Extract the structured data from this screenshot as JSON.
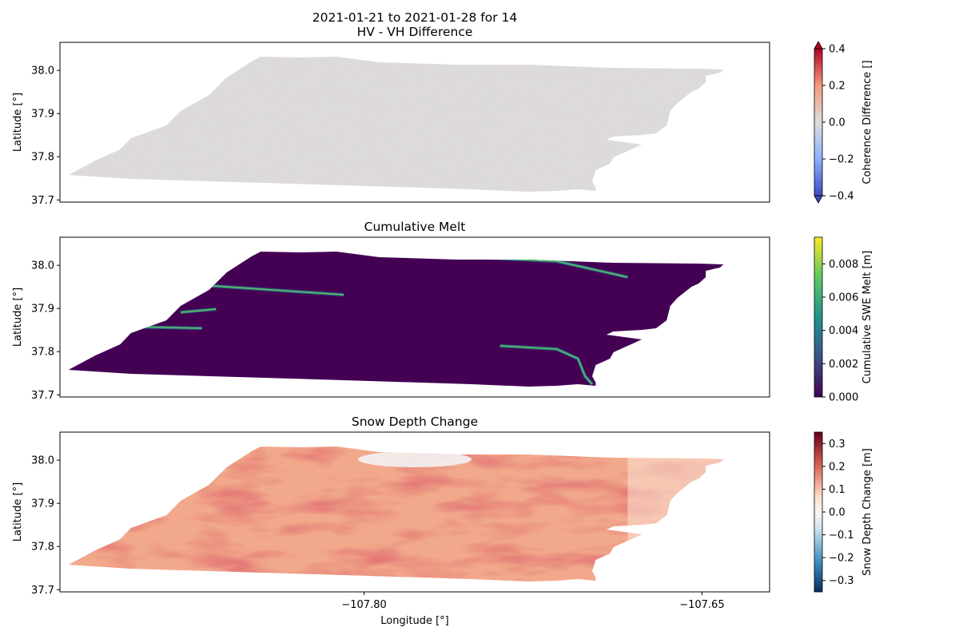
{
  "figure": {
    "title_line1": "2021-01-21 to 2021-01-28 for 14",
    "title_line2": "HV - VH Difference"
  },
  "colors": {
    "outside": "#ffffff",
    "axis": "#000000",
    "hv_vh_base": "#dcdcdc",
    "melt_base": "#440154",
    "depth_base": "#f2a98b"
  },
  "chart_data": [
    {
      "type": "heatmap",
      "title": "HV - VH Difference",
      "xlabel": "",
      "ylabel": "Latitude [°]",
      "yticks": [
        38.0,
        37.9,
        37.8,
        37.7
      ],
      "ytick_labels": [
        "38.0",
        "37.9",
        "37.8",
        "37.7"
      ],
      "ylim": [
        37.695,
        38.065
      ],
      "xlim": [
        -107.935,
        -107.62
      ],
      "xtick_labels": [],
      "colorbar": {
        "label": "Coherence Difference []",
        "cmap": "coolwarm",
        "vmin": -0.4,
        "vmax": 0.4,
        "ticks": [
          0.4,
          0.2,
          0.0,
          -0.2,
          -0.4
        ],
        "tick_labels": [
          "0.4",
          "0.2",
          "0.0",
          "−0.2",
          "−0.4"
        ],
        "extend": "both"
      }
    },
    {
      "type": "heatmap",
      "title": "Cumulative Melt",
      "xlabel": "",
      "ylabel": "Latitude [°]",
      "yticks": [
        38.0,
        37.9,
        37.8,
        37.7
      ],
      "ytick_labels": [
        "38.0",
        "37.9",
        "37.8",
        "37.7"
      ],
      "ylim": [
        37.695,
        38.065
      ],
      "xlim": [
        -107.935,
        -107.62
      ],
      "xtick_labels": [],
      "colorbar": {
        "label": "Cumulative SWE Melt [m]",
        "cmap": "viridis",
        "vmin": 0.0,
        "vmax": 0.0096,
        "ticks": [
          0.008,
          0.006,
          0.004,
          0.002,
          0.0
        ],
        "tick_labels": [
          "0.008",
          "0.006",
          "0.004",
          "0.002",
          "0.000"
        ],
        "extend": "neither"
      }
    },
    {
      "type": "heatmap",
      "title": "Snow Depth Change",
      "xlabel": "Longitude [°]",
      "ylabel": "Latitude [°]",
      "yticks": [
        38.0,
        37.9,
        37.8,
        37.7
      ],
      "ytick_labels": [
        "38.0",
        "37.9",
        "37.8",
        "37.7"
      ],
      "ylim": [
        37.695,
        38.065
      ],
      "xlim": [
        -107.935,
        -107.62
      ],
      "xticks": [
        -107.8,
        -107.65
      ],
      "xtick_labels": [
        "−107.80",
        "−107.65"
      ],
      "colorbar": {
        "label": "Snow Depth Change [m]",
        "cmap": "RdBu_r",
        "vmin": -0.35,
        "vmax": 0.35,
        "ticks": [
          0.3,
          0.2,
          0.1,
          0.0,
          -0.1,
          -0.2,
          -0.3
        ],
        "tick_labels": [
          "0.3",
          "0.2",
          "0.1",
          "0.0",
          "−0.1",
          "−0.2",
          "−0.3"
        ],
        "extend": "neither"
      }
    }
  ]
}
